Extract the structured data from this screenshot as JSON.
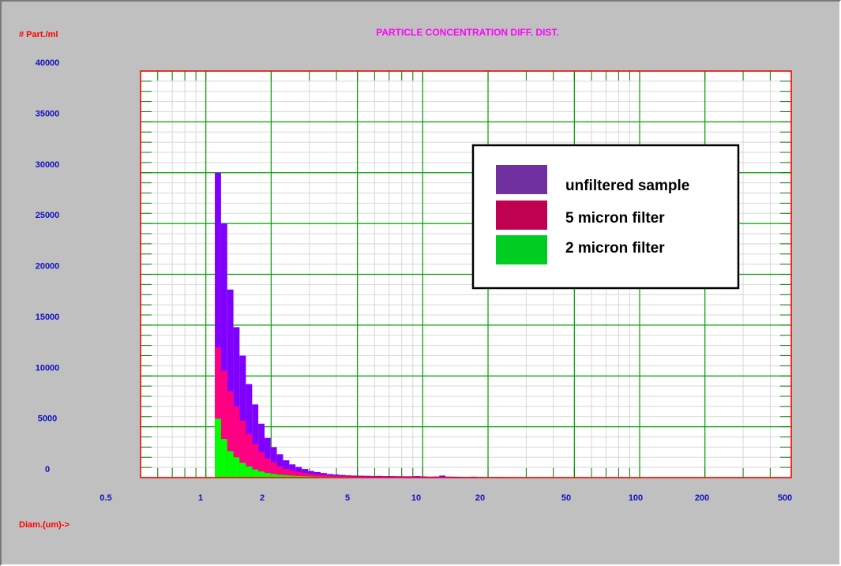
{
  "colors": {
    "background": "#c0c0c0",
    "plot_bg": "#ffffff",
    "plot_border": "#ff0000",
    "major_grid": "#00a000",
    "minor_grid": "#d8d8d8",
    "tick_label": "#1010c0",
    "axis_label": "#ff0000",
    "title": "#ff00ff",
    "unfiltered": "#8000ff",
    "five_micron": "#ff0080",
    "two_micron": "#00ff00",
    "legend_unfiltered": "#7030a0",
    "legend_five": "#c00050",
    "legend_two": "#00cc22"
  },
  "chart_data": {
    "type": "bar",
    "title": "PARTICLE CONCENTRATION DIFF. DIST.",
    "ylabel": "# Part./ml",
    "xlabel": "Diam.(um)->",
    "x_scale": "log",
    "xlim": [
      0.5,
      500
    ],
    "ylim": [
      0,
      40000
    ],
    "x_tick_labels": [
      "0.5",
      "1",
      "2",
      "5",
      "10",
      "20",
      "50",
      "100",
      "200",
      "500"
    ],
    "x_tick_values": [
      0.5,
      1,
      2,
      5,
      10,
      20,
      50,
      100,
      200,
      500
    ],
    "y_tick_labels": [
      "40000",
      "35000",
      "30000",
      "25000",
      "20000",
      "15000",
      "10000",
      "5000",
      "0"
    ],
    "y_tick_values": [
      40000,
      35000,
      30000,
      25000,
      20000,
      15000,
      10000,
      5000,
      0
    ],
    "grid": true,
    "legend_position": "top-right",
    "bin_edges": [
      1.1,
      1.175,
      1.255,
      1.34,
      1.43,
      1.53,
      1.635,
      1.745,
      1.865,
      1.99,
      2.125,
      2.27,
      2.425,
      2.59,
      2.77,
      2.96,
      3.16,
      3.38,
      3.61,
      3.86,
      4.12,
      4.4,
      4.7,
      5.02,
      5.37,
      5.74,
      6.13,
      6.55,
      7.0,
      7.48,
      8.0,
      8.55,
      9.13,
      9.76,
      10.43,
      11.15,
      11.92,
      12.74,
      13.61,
      14.55,
      15.55,
      16.62,
      17.76,
      18.98,
      20.3,
      21.7,
      23.2,
      24.8,
      26.5,
      28.3,
      30.3,
      32.4,
      34.6,
      37.0,
      39.5,
      42.2,
      45.1,
      48.2,
      51.5,
      55.1
    ],
    "series": [
      {
        "name": "unfiltered sample",
        "values": [
          30000,
          25000,
          18500,
          14800,
          12000,
          9200,
          7200,
          5300,
          3900,
          3000,
          2300,
          1700,
          1300,
          1050,
          850,
          650,
          550,
          450,
          350,
          300,
          260,
          220,
          200,
          190,
          180,
          160,
          170,
          150,
          150,
          140,
          130,
          130,
          150,
          120,
          100,
          110,
          200,
          100,
          90,
          80,
          70,
          90,
          60,
          50,
          50,
          60,
          50,
          40,
          40,
          35,
          40,
          30,
          30,
          25,
          25,
          20,
          25,
          20,
          15
        ]
      },
      {
        "name": "5 micron filter",
        "values": [
          12800,
          10500,
          8500,
          7000,
          5600,
          4300,
          3300,
          2500,
          1900,
          1500,
          1100,
          850,
          700,
          550,
          450,
          380,
          310,
          250,
          200,
          170,
          150,
          130,
          110,
          100,
          95,
          90,
          85,
          80,
          75,
          70,
          65,
          60,
          55,
          50,
          45,
          40,
          40,
          35,
          30,
          30,
          25,
          25,
          20,
          20,
          20,
          15,
          15,
          15,
          10,
          10,
          10,
          10,
          10,
          8,
          8,
          5,
          5,
          5,
          5
        ]
      },
      {
        "name": "2 micron filter",
        "values": [
          5800,
          3800,
          2600,
          2000,
          1450,
          1100,
          800,
          600,
          450,
          350,
          280,
          230,
          190,
          160,
          140,
          120,
          100,
          90,
          80,
          70,
          60,
          55,
          50,
          45,
          40,
          40,
          35,
          35,
          30,
          30,
          25,
          25,
          20,
          20,
          20,
          15,
          15,
          15,
          12,
          10,
          10,
          10,
          8,
          8,
          8,
          6,
          6,
          6,
          5,
          5,
          5,
          4,
          4,
          4,
          3,
          3,
          3,
          2,
          2
        ]
      }
    ]
  }
}
